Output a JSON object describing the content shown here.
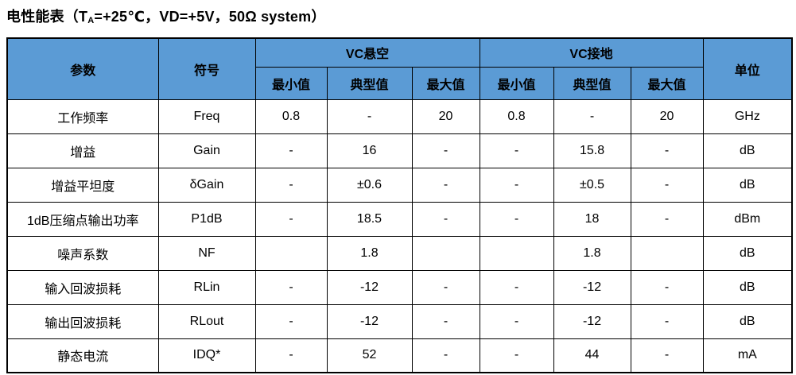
{
  "title": {
    "part1": "电性能表（T",
    "subscript": "A",
    "part2": "=+25℃，VD=+5V，50Ω system）"
  },
  "colors": {
    "header_bg": "#5B9BD5",
    "border": "#000000",
    "text": "#000000"
  },
  "table": {
    "header": {
      "param": "参数",
      "symbol": "符号",
      "group_vc_float": "VC悬空",
      "group_vc_ground": "VC接地",
      "unit": "单位",
      "sub": [
        "最小值",
        "典型值",
        "最大值"
      ]
    },
    "rows": [
      {
        "param": "工作频率",
        "symbol": "Freq",
        "vc_float": [
          "0.8",
          "-",
          "20"
        ],
        "vc_ground": [
          "0.8",
          "-",
          "20"
        ],
        "unit": "GHz"
      },
      {
        "param": "增益",
        "symbol": "Gain",
        "vc_float": [
          "-",
          "16",
          "-"
        ],
        "vc_ground": [
          "-",
          "15.8",
          "-"
        ],
        "unit": "dB"
      },
      {
        "param": "增益平坦度",
        "symbol": "δGain",
        "vc_float": [
          "-",
          "±0.6",
          "-"
        ],
        "vc_ground": [
          "-",
          "±0.5",
          "-"
        ],
        "unit": "dB"
      },
      {
        "param": "1dB压缩点输出功率",
        "symbol": "P1dB",
        "vc_float": [
          "-",
          "18.5",
          "-"
        ],
        "vc_ground": [
          "-",
          "18",
          "-"
        ],
        "unit": "dBm"
      },
      {
        "param": "噪声系数",
        "symbol": "NF",
        "vc_float": [
          "",
          "1.8",
          ""
        ],
        "vc_ground": [
          "",
          "1.8",
          ""
        ],
        "unit": "dB"
      },
      {
        "param": "输入回波损耗",
        "symbol": "RLin",
        "vc_float": [
          "-",
          "-12",
          "-"
        ],
        "vc_ground": [
          "-",
          "-12",
          "-"
        ],
        "unit": "dB"
      },
      {
        "param": "输出回波损耗",
        "symbol": "RLout",
        "vc_float": [
          "-",
          "-12",
          "-"
        ],
        "vc_ground": [
          "-",
          "-12",
          "-"
        ],
        "unit": "dB"
      },
      {
        "param": "静态电流",
        "symbol": "IDQ*",
        "vc_float": [
          "-",
          "52",
          "-"
        ],
        "vc_ground": [
          "-",
          "44",
          "-"
        ],
        "unit": "mA"
      }
    ]
  }
}
